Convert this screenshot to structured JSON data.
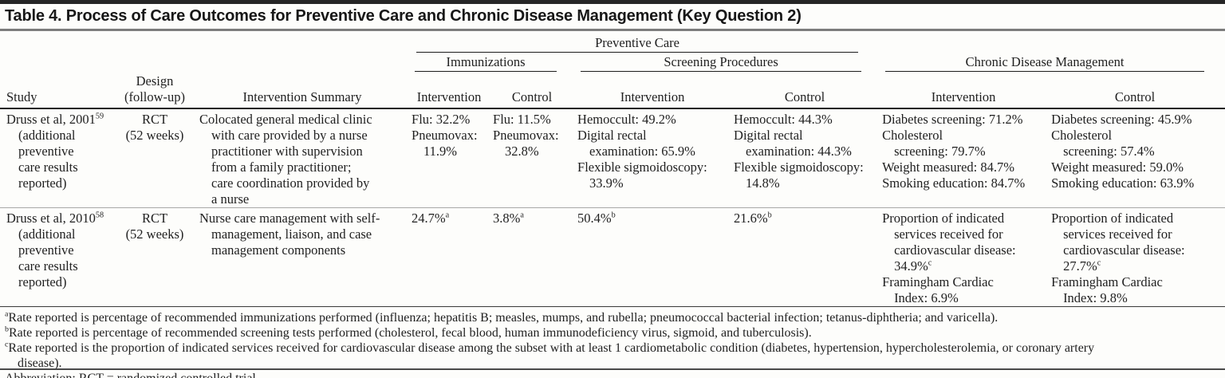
{
  "title": "Table 4. Process of Care Outcomes for Preventive Care and Chronic Disease Management (Key Question 2)",
  "header": {
    "study": "Study",
    "design": "Design\n(follow-up)",
    "summary": "Intervention Summary",
    "preventive_care": "Preventive Care",
    "immunizations": "Immunizations",
    "screening_procedures": "Screening Procedures",
    "chronic_disease_management": "Chronic Disease Management",
    "intervention": "Intervention",
    "control": "Control"
  },
  "rows": [
    {
      "study": "Druss et al, 2001^{59}\n(additional\npreventive\ncare results\nreported)",
      "design": "RCT\n(52 weeks)",
      "summary": "Colocated general medical clinic\nwith care provided by a nurse\npractitioner with supervision\nfrom a family practitioner;\ncare coordination provided by\na nurse",
      "imm_intervention": [
        "Flu: 32.2%",
        "Pneumovax:\n11.9%"
      ],
      "imm_control": [
        "Flu: 11.5%",
        "Pneumovax:\n32.8%"
      ],
      "scr_intervention": [
        "Hemoccult: 49.2%",
        "Digital rectal\nexamination: 65.9%",
        "Flexible sigmoidoscopy:\n33.9%"
      ],
      "scr_control": [
        "Hemoccult: 44.3%",
        "Digital rectal\nexamination: 44.3%",
        "Flexible sigmoidoscopy:\n14.8%"
      ],
      "cdm_intervention": [
        "Diabetes screening: 71.2%",
        "Cholesterol\nscreening: 79.7%",
        "Weight measured: 84.7%",
        "Smoking education: 84.7%"
      ],
      "cdm_control": [
        "Diabetes screening: 45.9%",
        "Cholesterol\nscreening: 57.4%",
        "Weight measured: 59.0%",
        "Smoking education: 63.9%"
      ]
    },
    {
      "study": "Druss et al, 2010^{58}\n(additional\npreventive\ncare results\nreported)",
      "design": "RCT\n(52 weeks)",
      "summary": "Nurse care management with self-\nmanagement, liaison, and case\nmanagement components",
      "imm_intervention": [
        "24.7%^{a}"
      ],
      "imm_control": [
        "3.8%^{a}"
      ],
      "scr_intervention": [
        "50.4%^{b}"
      ],
      "scr_control": [
        "21.6%^{b}"
      ],
      "cdm_intervention": [
        "Proportion of indicated\nservices received for\ncardiovascular disease:\n34.9%^{c}",
        "Framingham Cardiac\nIndex: 6.9%"
      ],
      "cdm_control": [
        "Proportion of indicated\nservices received for\ncardiovascular disease:\n27.7%^{c}",
        "Framingham Cardiac\nIndex: 9.8%"
      ]
    }
  ],
  "footnotes": [
    "^{a}Rate reported is percentage of recommended immunizations performed (influenza; hepatitis B; measles, mumps, and rubella; pneumococcal bacterial infection; tetanus-diphtheria; and varicella).",
    "^{b}Rate reported is percentage of recommended screening tests performed (cholesterol, fecal blood, human immunodeficiency virus, sigmoid, and tuberculosis).",
    "^{c}Rate reported is the proportion of indicated services received for cardiovascular disease among the subset with at least 1 cardiometabolic condition (diabetes, hypertension, hypercholesterolemia, or coronary artery\ndisease).",
    "Abbreviation: RCT = randomized controlled trial."
  ],
  "colors": {
    "top_bar": "#262626",
    "title_rule": "#7d7d7d",
    "text": "#1f1f1f",
    "rule_dark": "#1e1e1e",
    "row_separator": "#a8a8a8"
  }
}
